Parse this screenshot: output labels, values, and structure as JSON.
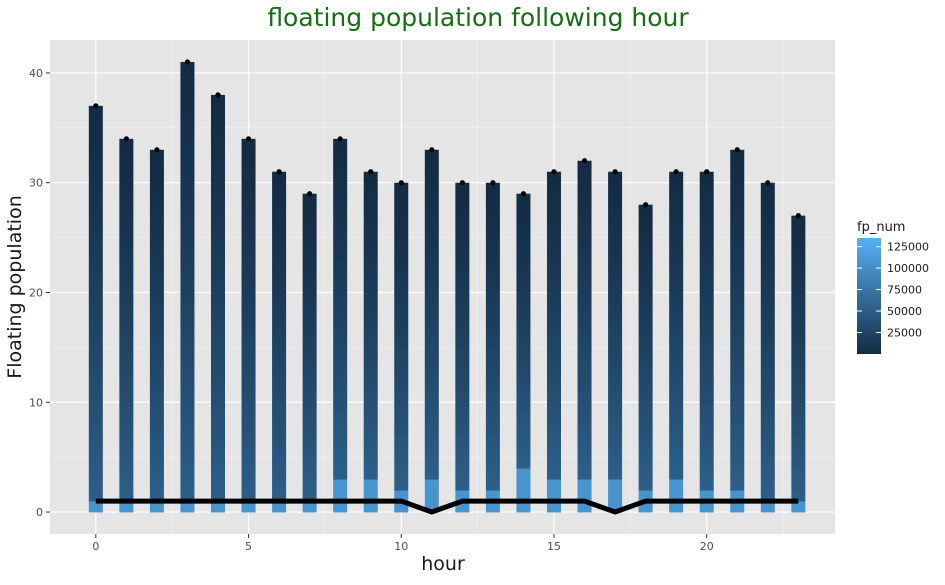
{
  "chart_data": {
    "type": "bar",
    "title": "floating population following hour",
    "xlabel": "hour",
    "ylabel": "Floating population",
    "x": [
      0,
      1,
      2,
      3,
      4,
      5,
      6,
      7,
      8,
      9,
      10,
      11,
      12,
      13,
      14,
      15,
      16,
      17,
      18,
      19,
      20,
      21,
      22,
      23
    ],
    "bar_counts": [
      37,
      34,
      33,
      41,
      38,
      34,
      31,
      29,
      34,
      31,
      30,
      33,
      30,
      30,
      29,
      31,
      32,
      31,
      28,
      31,
      31,
      33,
      30,
      27
    ],
    "line_values": [
      1,
      1,
      1,
      1,
      1,
      1,
      1,
      1,
      1,
      1,
      1,
      0,
      1,
      1,
      1,
      1,
      1,
      0,
      1,
      1,
      1,
      1,
      1,
      1
    ],
    "bottom_segment_heights": [
      1,
      1,
      1,
      1,
      1,
      1,
      1,
      1,
      3,
      3,
      2,
      3,
      2,
      2,
      4,
      3,
      3,
      3,
      2,
      3,
      2,
      2,
      1,
      1
    ],
    "xlim": [
      -1.5,
      24.2
    ],
    "ylim": [
      -2,
      43
    ],
    "x_ticks": [
      0,
      5,
      10,
      15,
      20
    ],
    "x_tick_labels": [
      "0",
      "5",
      "10",
      "15",
      "20"
    ],
    "y_ticks": [
      0,
      10,
      20,
      30,
      40
    ],
    "y_tick_labels": [
      "0",
      "10",
      "20",
      "30",
      "40"
    ],
    "grid": true,
    "legend": {
      "title": "fp_num",
      "position": "right",
      "labels": [
        "125000",
        "100000",
        "75000",
        "50000",
        "25000"
      ],
      "values": [
        125000,
        100000,
        75000,
        50000,
        25000
      ],
      "range": [
        0,
        135000
      ]
    },
    "colors": {
      "panel": "#e5e5e5",
      "grid": "#ffffff",
      "low": "#132b43",
      "high": "#56b1f7",
      "line": "#000000",
      "title": "#156e15"
    }
  }
}
